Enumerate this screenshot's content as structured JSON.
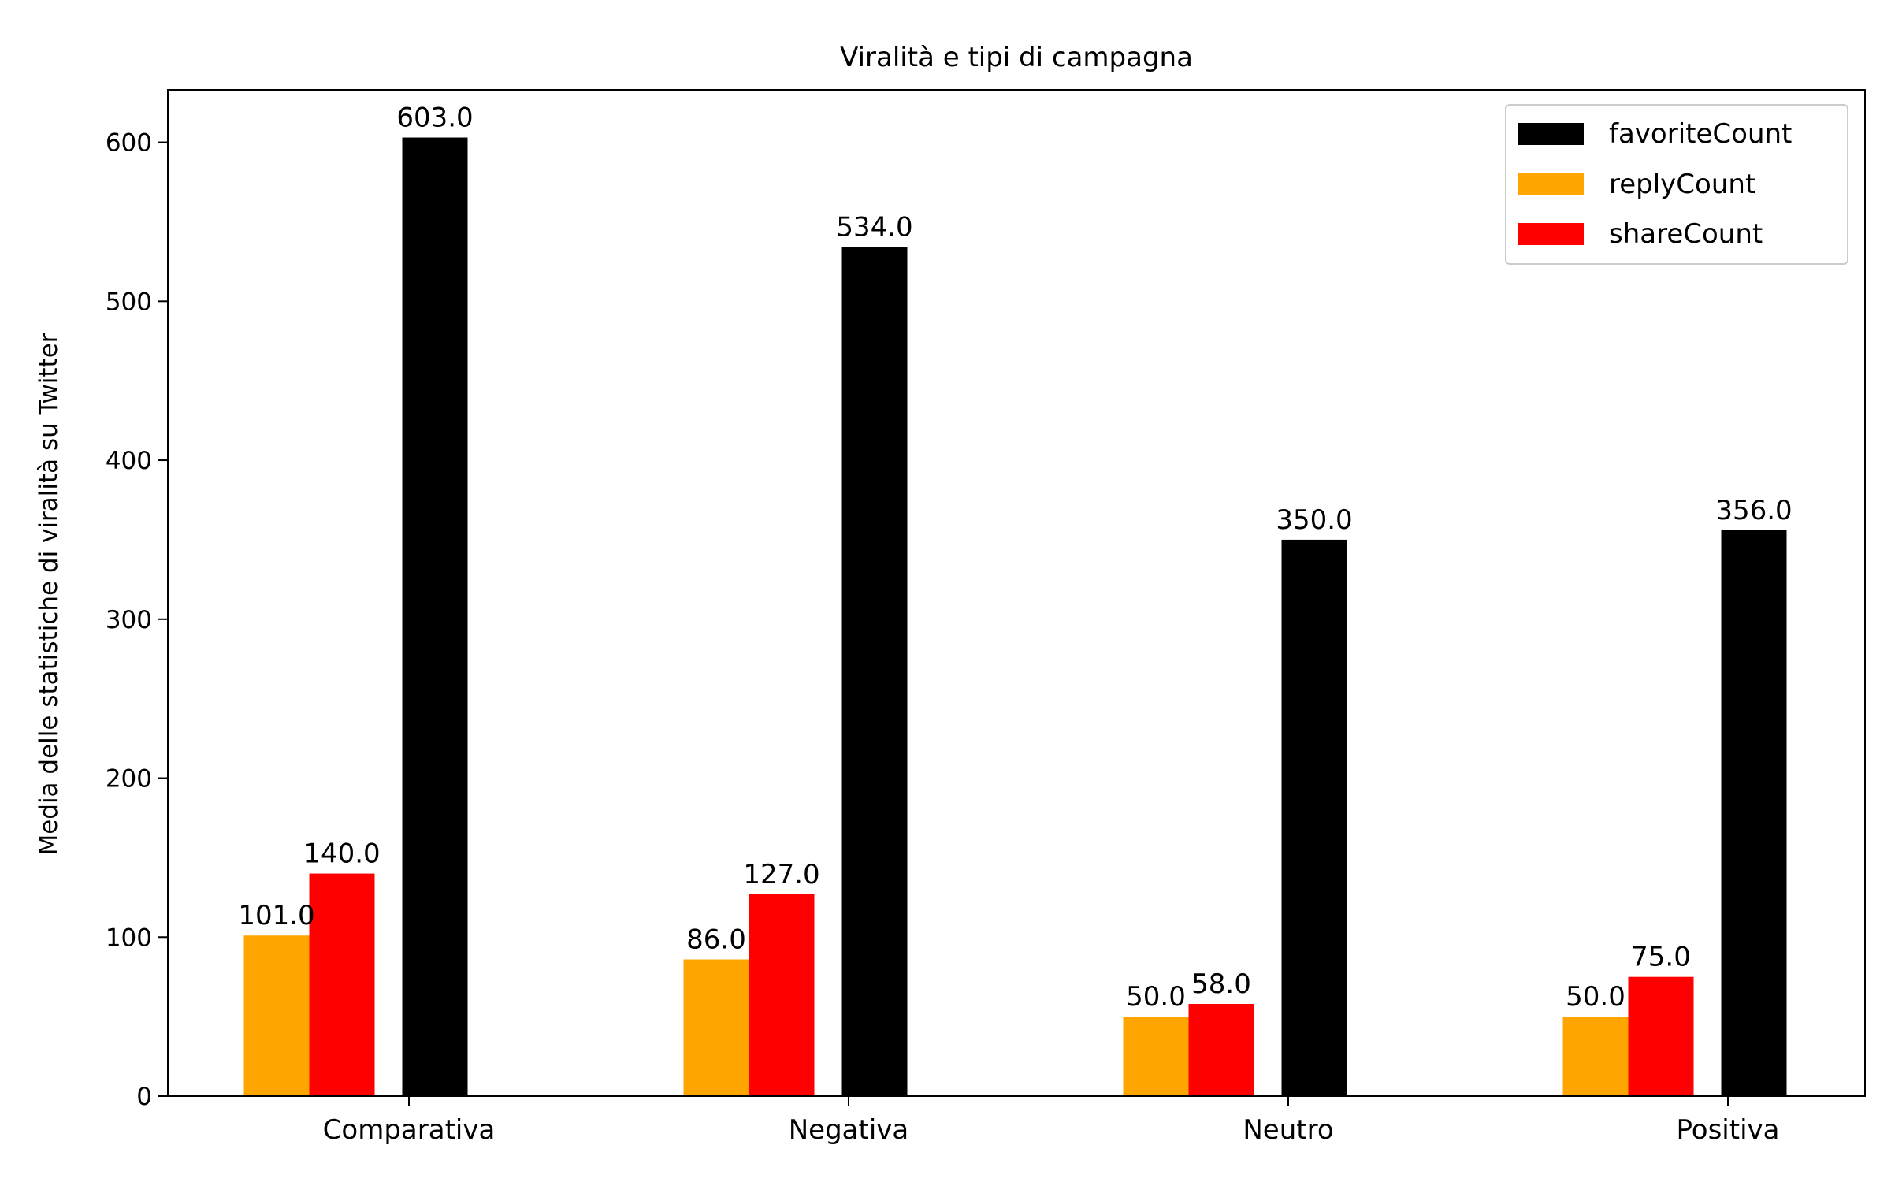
{
  "colors": {
    "favoriteCount": "#000000",
    "replyCount": "#FFA500",
    "shareCount": "#FF0000",
    "background": "#ffffff",
    "axis": "#000000"
  },
  "chart_data": {
    "type": "bar",
    "title": "Viralità e tipi di campagna",
    "xlabel": "",
    "ylabel": "Media delle statistiche di viralità su Twitter",
    "ylim": [
      0,
      633
    ],
    "yticks": [
      0,
      100,
      200,
      300,
      400,
      500,
      600
    ],
    "categories": [
      "Comparativa",
      "Negativa",
      "Neutro",
      "Positiva"
    ],
    "series": [
      {
        "name": "favoriteCount",
        "values": [
          603.0,
          534.0,
          350.0,
          356.0
        ],
        "labels": [
          "603.0",
          "534.0",
          "350.0",
          "356.0"
        ]
      },
      {
        "name": "replyCount",
        "values": [
          101.0,
          86.0,
          50.0,
          50.0
        ],
        "labels": [
          "101.0",
          "86.0",
          "50.0",
          "50.0"
        ]
      },
      {
        "name": "shareCount",
        "values": [
          140.0,
          127.0,
          58.0,
          75.0
        ],
        "labels": [
          "140.0",
          "127.0",
          "58.0",
          "75.0"
        ]
      }
    ],
    "legend_position": "top-right",
    "grid": false
  }
}
